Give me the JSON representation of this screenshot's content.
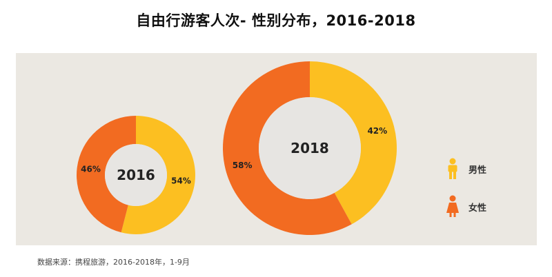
{
  "title": "自由行游客人次- 性别分布，2016-2018",
  "source": "数据来源：携程旅游，2016-2018年，1-9月",
  "colors": {
    "male": "#fcbf21",
    "female": "#f26b21",
    "panel": "#ebe8e2",
    "hole": "#e7e5e2"
  },
  "legend": [
    {
      "label": "男性",
      "icon": "male-person-icon"
    },
    {
      "label": "女性",
      "icon": "female-person-icon"
    }
  ],
  "chart_data": [
    {
      "type": "pie",
      "year_label": "2016",
      "series": [
        {
          "name": "男性",
          "value": 54,
          "label": "54%"
        },
        {
          "name": "女性",
          "value": 46,
          "label": "46%"
        }
      ]
    },
    {
      "type": "pie",
      "year_label": "2018",
      "series": [
        {
          "name": "男性",
          "value": 42,
          "label": "42%"
        },
        {
          "name": "女性",
          "value": 58,
          "label": "58%"
        }
      ]
    }
  ]
}
